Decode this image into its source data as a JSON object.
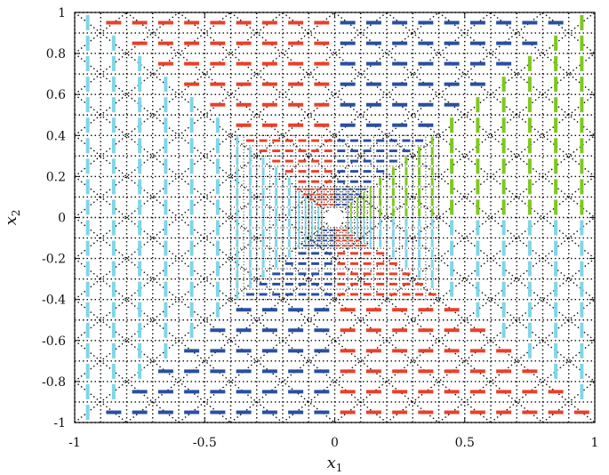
{
  "chart_data": {
    "type": "scatter",
    "title": "",
    "xlabel": "x",
    "xlabel_sub": "1",
    "ylabel": "x",
    "ylabel_sub": "2",
    "xlim": [
      -1,
      1
    ],
    "ylim": [
      -1,
      1
    ],
    "xticks": [
      -1,
      -0.5,
      0,
      0.5,
      1
    ],
    "xtick_labels": [
      "-1",
      "-0.5",
      "0",
      "0.5",
      "1"
    ],
    "yticks": [
      -1,
      -0.8,
      -0.6,
      -0.4,
      -0.2,
      0,
      0.2,
      0.4,
      0.6,
      0.8,
      1
    ],
    "ytick_labels": [
      "-1",
      "-0.8",
      "-0.6",
      "-0.4",
      "-0.2",
      "0",
      "0.2",
      "0.4",
      "0.6",
      "0.8",
      "1"
    ],
    "grid": "dotted",
    "mesh": "triangular, refined toward origin",
    "hole_at_origin": true,
    "colors": {
      "horizontal_pos": "#e8402a",
      "vertical_pos": "#7ec81f",
      "horizontal_neg": "#2a4fa0",
      "vertical_neg": "#7fd6e6",
      "mesh": "#111111"
    },
    "field_description": "Arrows/segments of a vector field on the square [-1,1]x[-1,1]; segment direction follows dominant component; colors distinguish quadrant groups."
  }
}
